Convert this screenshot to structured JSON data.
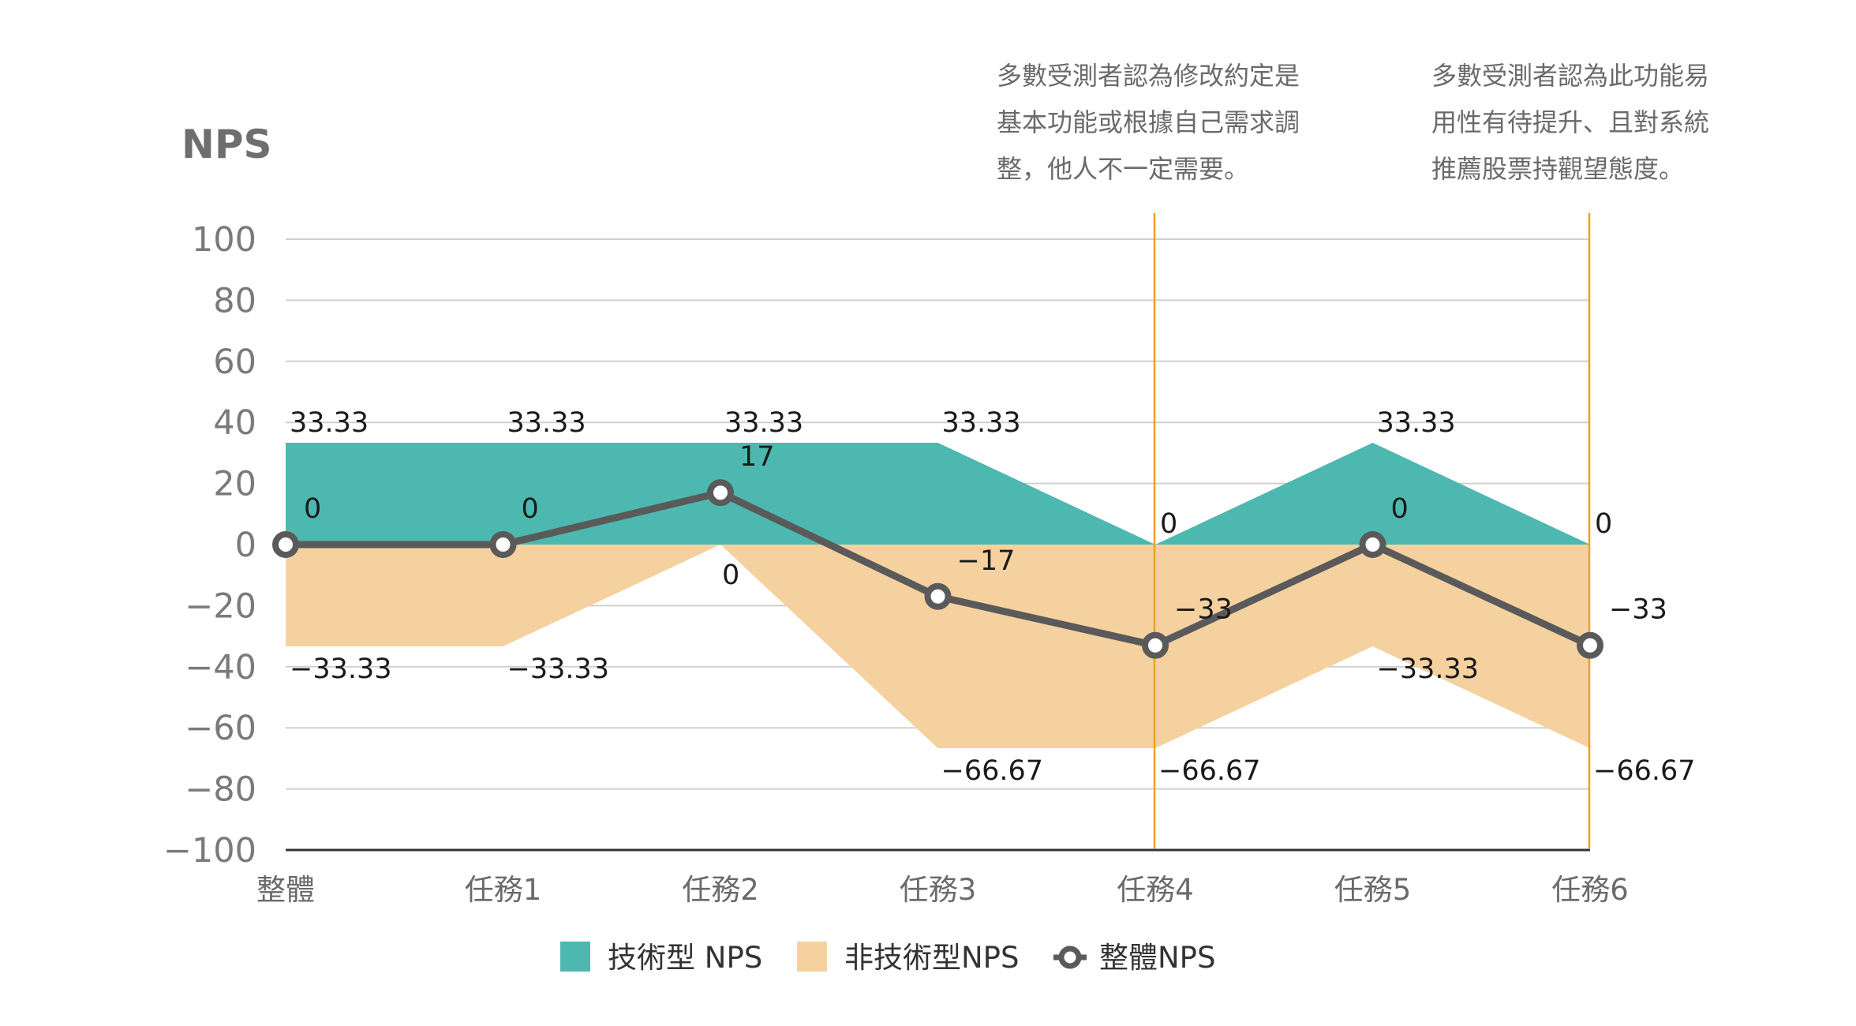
{
  "chart_data": {
    "type": "area",
    "ylabel": "NPS",
    "ylim": [
      -100,
      100
    ],
    "yticks": [
      100,
      80,
      60,
      40,
      20,
      0,
      -20,
      -40,
      -60,
      -80,
      -100
    ],
    "ytick_labels": [
      "100",
      "80",
      "60",
      "40",
      "20",
      "0",
      "−20",
      "−40",
      "−60",
      "−80",
      "−100"
    ],
    "categories": [
      "整體",
      "任務1",
      "任務2",
      "任務3",
      "任務4",
      "任務5",
      "任務6"
    ],
    "grid": true,
    "legend_position": "bottom",
    "series": [
      {
        "name": "技術型 NPS",
        "kind": "area",
        "color": "#4db8b0",
        "values": [
          33.33,
          33.33,
          33.33,
          33.33,
          0,
          33.33,
          0
        ],
        "labels": [
          "33.33",
          "33.33",
          "33.33",
          "33.33",
          "0",
          "33.33",
          "0"
        ]
      },
      {
        "name": "非技術型NPS",
        "kind": "area",
        "color": "#f5d1a0",
        "values": [
          -33.33,
          -33.33,
          0,
          -66.67,
          -66.67,
          -33.33,
          -66.67
        ],
        "labels": [
          "−33.33",
          "−33.33",
          "0",
          "−66.67",
          "−66.67",
          "−33.33",
          "−66.67"
        ]
      },
      {
        "name": "整體NPS",
        "kind": "line",
        "color": "#5a5a5a",
        "values": [
          0,
          0,
          17,
          -17,
          -33,
          0,
          -33
        ],
        "labels": [
          "0",
          "0",
          "17",
          "−17",
          "−33",
          "0",
          "−33"
        ]
      }
    ],
    "annotations": [
      {
        "category": "任務4",
        "lines": [
          "多數受測者認為修改約定是",
          "基本功能或根據自己需求調",
          "整，他人不一定需要。"
        ],
        "line_color": "#f0a020"
      },
      {
        "category": "任務6",
        "lines": [
          "多數受測者認為此功能易",
          "用性有待提升、且對系統",
          "推薦股票持觀望態度。"
        ],
        "line_color": "#f0a020"
      }
    ]
  }
}
